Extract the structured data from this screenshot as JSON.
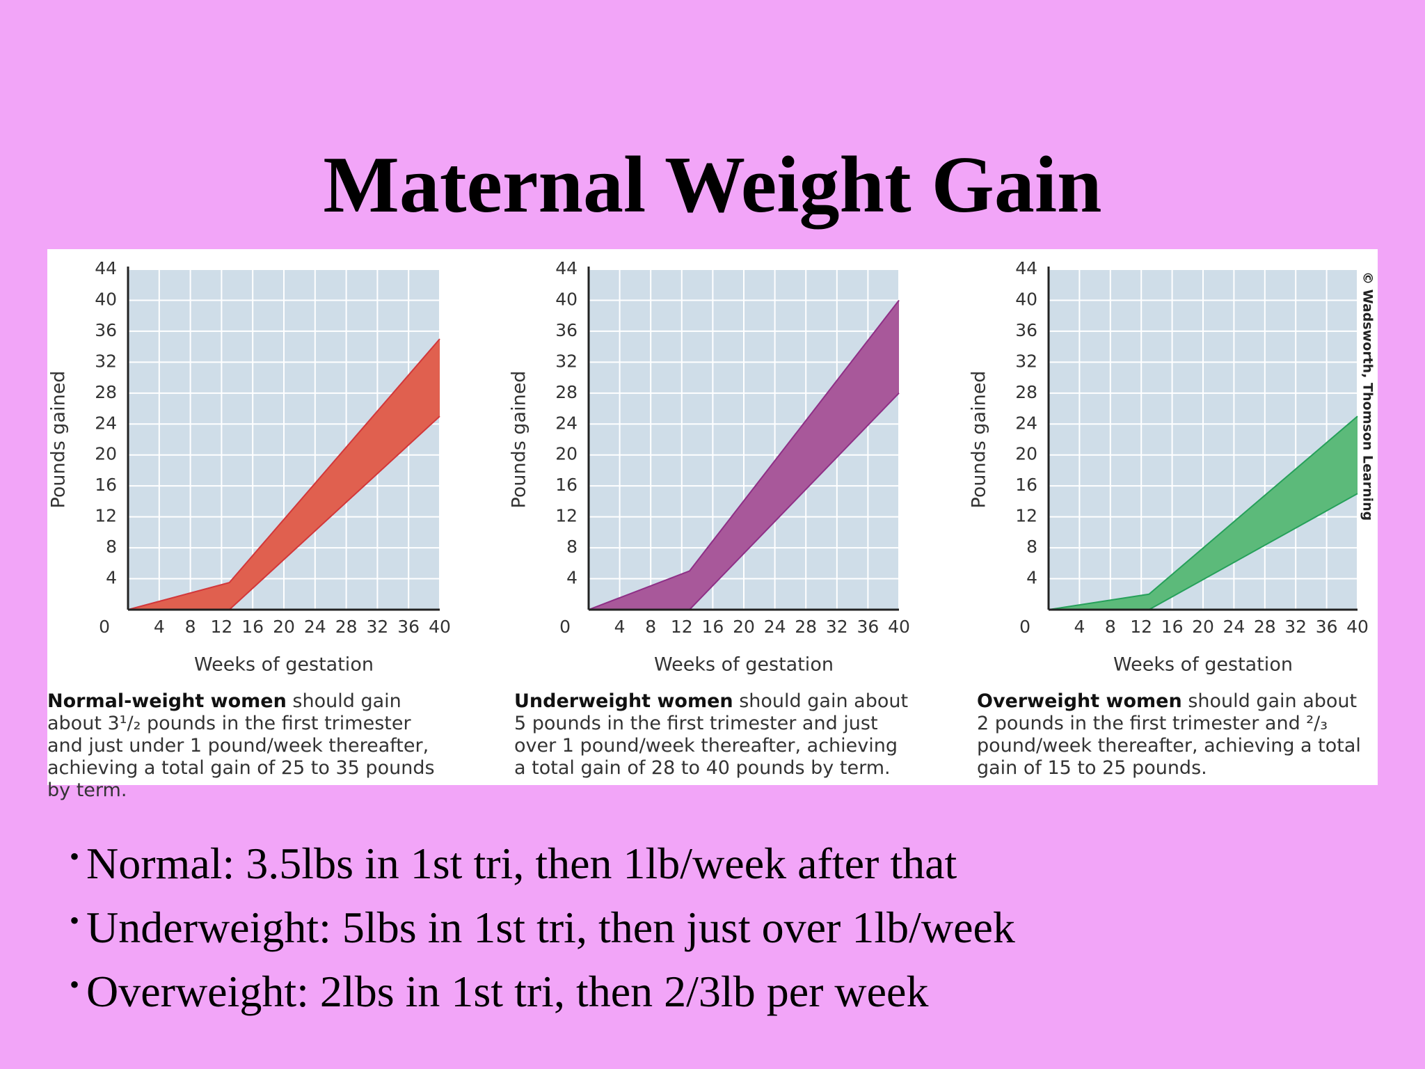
{
  "title": "Maternal Weight Gain",
  "credit": "© Wadsworth, Thomson Learning",
  "bullets": [
    "Normal: 3.5lbs in 1st tri, then 1lb/week after that",
    "Underweight: 5lbs in 1st tri, then just over 1lb/week",
    "Overweight: 2lbs in 1st tri, then 2/3lb per week"
  ],
  "chart_data": [
    {
      "type": "band",
      "x_label": "Weeks of gestation",
      "y_label": "Pounds gained",
      "caption_bold": "Normal-weight women",
      "caption": "should gain about 3¹/₂ pounds in the first trimester and just under 1 pound/week thereafter, achieving a total gain of 25 to 35 pounds by term.",
      "x": [
        0,
        13,
        40
      ],
      "fill": "#e0604f",
      "series": [
        {
          "color": "#d2373a",
          "values": [
            0,
            3.5,
            35
          ]
        },
        {
          "color": "#d2373a",
          "values": [
            0,
            0,
            25
          ]
        }
      ],
      "xlim": [
        0,
        40
      ],
      "ylim": [
        0,
        44
      ],
      "xticks": [
        4,
        8,
        12,
        16,
        20,
        24,
        28,
        32,
        36,
        40
      ],
      "yticks": [
        0,
        4,
        8,
        12,
        16,
        20,
        24,
        28,
        32,
        36,
        40,
        44
      ],
      "grid": true
    },
    {
      "type": "band",
      "x_label": "Weeks of gestation",
      "y_label": "Pounds gained",
      "caption_bold": "Underweight women",
      "caption": "should gain about 5 pounds in the first trimester and just over 1 pound/week thereafter, achieving a total gain of 28 to 40 pounds by term.",
      "x": [
        0,
        13,
        40
      ],
      "fill": "#a8589a",
      "series": [
        {
          "color": "#8e2f86",
          "values": [
            0,
            5,
            40
          ]
        },
        {
          "color": "#8e2f86",
          "values": [
            0,
            0,
            28
          ]
        }
      ],
      "xlim": [
        0,
        40
      ],
      "ylim": [
        0,
        44
      ],
      "xticks": [
        4,
        8,
        12,
        16,
        20,
        24,
        28,
        32,
        36,
        40
      ],
      "yticks": [
        0,
        4,
        8,
        12,
        16,
        20,
        24,
        28,
        32,
        36,
        40,
        44
      ],
      "grid": true
    },
    {
      "type": "band",
      "x_label": "Weeks of gestation",
      "y_label": "Pounds gained",
      "caption_bold": "Overweight women",
      "caption": "should gain about 2 pounds in the first trimester and ²/₃ pound/week thereafter, achieving a total gain of 15 to 25 pounds.",
      "x": [
        0,
        13,
        40
      ],
      "fill": "#5cba7a",
      "series": [
        {
          "color": "#26a05a",
          "values": [
            0,
            2,
            25
          ]
        },
        {
          "color": "#26a05a",
          "values": [
            0,
            0,
            15
          ]
        }
      ],
      "xlim": [
        0,
        40
      ],
      "ylim": [
        0,
        44
      ],
      "xticks": [
        4,
        8,
        12,
        16,
        20,
        24,
        28,
        32,
        36,
        40
      ],
      "yticks": [
        0,
        4,
        8,
        12,
        16,
        20,
        24,
        28,
        32,
        36,
        40,
        44
      ],
      "grid": true
    }
  ]
}
